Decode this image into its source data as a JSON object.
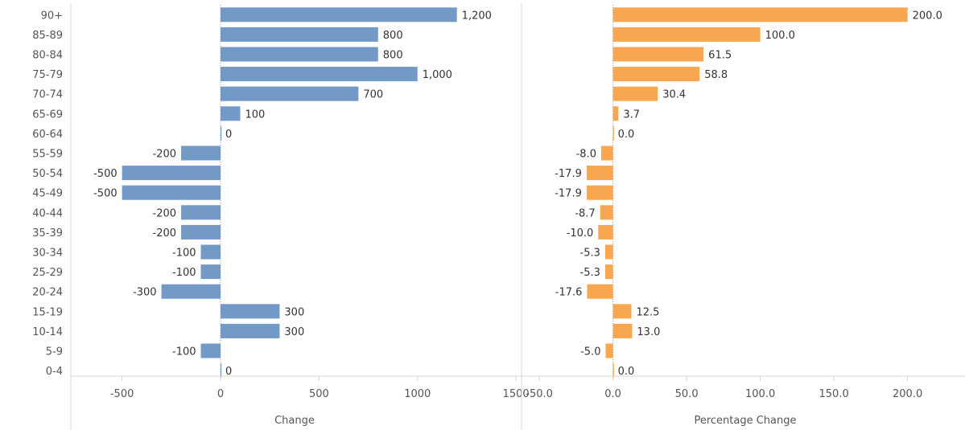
{
  "chart_data": [
    {
      "type": "bar",
      "orientation": "horizontal",
      "categories": [
        "90+",
        "85-89",
        "80-84",
        "75-79",
        "70-74",
        "65-69",
        "60-64",
        "55-59",
        "50-54",
        "45-49",
        "40-44",
        "35-39",
        "30-34",
        "25-29",
        "20-24",
        "15-19",
        "10-14",
        "5-9",
        "0-4"
      ],
      "values": [
        1200,
        800,
        800,
        1000,
        700,
        100,
        0,
        -200,
        -500,
        -500,
        -200,
        -200,
        -100,
        -100,
        -300,
        300,
        300,
        -100,
        0
      ],
      "labels": [
        "1,200",
        "800",
        "800",
        "1,000",
        "700",
        "100",
        "0",
        "-200",
        "-500",
        "-500",
        "-200",
        "-200",
        "-100",
        "-100",
        "-300",
        "300",
        "300",
        "-100",
        "0"
      ],
      "xlabel": "Change",
      "xlim": [
        -760,
        1520
      ],
      "xticks": [
        -500,
        0,
        500,
        1000,
        1500
      ],
      "xtick_labels": [
        "-500",
        "0",
        "500",
        "1000",
        "1500"
      ],
      "color": "#7399c6"
    },
    {
      "type": "bar",
      "orientation": "horizontal",
      "categories": [
        "90+",
        "85-89",
        "80-84",
        "75-79",
        "70-74",
        "65-69",
        "60-64",
        "55-59",
        "50-54",
        "45-49",
        "40-44",
        "35-39",
        "30-34",
        "25-29",
        "20-24",
        "15-19",
        "10-14",
        "5-9",
        "0-4"
      ],
      "values": [
        200.0,
        100.0,
        61.5,
        58.8,
        30.4,
        3.7,
        0.0,
        -8.0,
        -17.9,
        -17.9,
        -8.7,
        -10.0,
        -5.3,
        -5.3,
        -17.6,
        12.5,
        13.0,
        -5.0,
        0.0
      ],
      "labels": [
        "200.0",
        "100.0",
        "61.5",
        "58.8",
        "30.4",
        "3.7",
        "0.0",
        "-8.0",
        "-17.9",
        "-17.9",
        "-8.7",
        "-10.0",
        "-5.3",
        "-5.3",
        "-17.6",
        "12.5",
        "13.0",
        "-5.0",
        "0.0"
      ],
      "xlabel": "Percentage Change",
      "xlim": [
        -61,
        239
      ],
      "xticks": [
        -50,
        0,
        50,
        100,
        150,
        200
      ],
      "xtick_labels": [
        "-50.0",
        "0.0",
        "50.0",
        "100.0",
        "150.0",
        "200.0"
      ],
      "color": "#f8a64f"
    }
  ]
}
